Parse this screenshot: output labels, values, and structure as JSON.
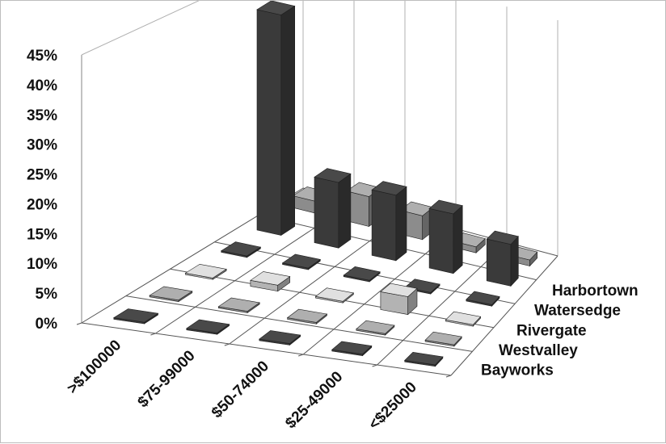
{
  "chart_data": {
    "type": "bar",
    "subtype": "3d-column",
    "title": "",
    "xlabel": "",
    "ylabel": "",
    "ylim": [
      0,
      45
    ],
    "yticks": [
      "0%",
      "5%",
      "10%",
      "15%",
      "20%",
      "25%",
      "30%",
      "35%",
      "40%",
      "45%"
    ],
    "categories": [
      ">$100000",
      "$75-99000",
      "$50-74000",
      "$25-49000",
      "<$25000"
    ],
    "series": [
      {
        "name": "Bayworks",
        "color": "#3a3a3a",
        "values": [
          0,
          0,
          0,
          0,
          0
        ]
      },
      {
        "name": "Westvalley",
        "color": "#8c8c8c",
        "values": [
          0,
          0,
          0,
          0,
          0
        ]
      },
      {
        "name": "Rivergate",
        "color": "#b3b3b3",
        "values": [
          0,
          1,
          0,
          3,
          0
        ]
      },
      {
        "name": "Watersedge",
        "color": "#3a3a3a",
        "values": [
          0,
          0,
          0,
          0,
          0
        ]
      },
      {
        "name": "Harbortown",
        "color": "#3a3a3a",
        "values": [
          37,
          11,
          11,
          10,
          7
        ]
      },
      {
        "name": "",
        "color": "#8c8c8c",
        "values": [
          2,
          5,
          4,
          1,
          1
        ]
      }
    ],
    "legend": "none",
    "grid": true
  }
}
